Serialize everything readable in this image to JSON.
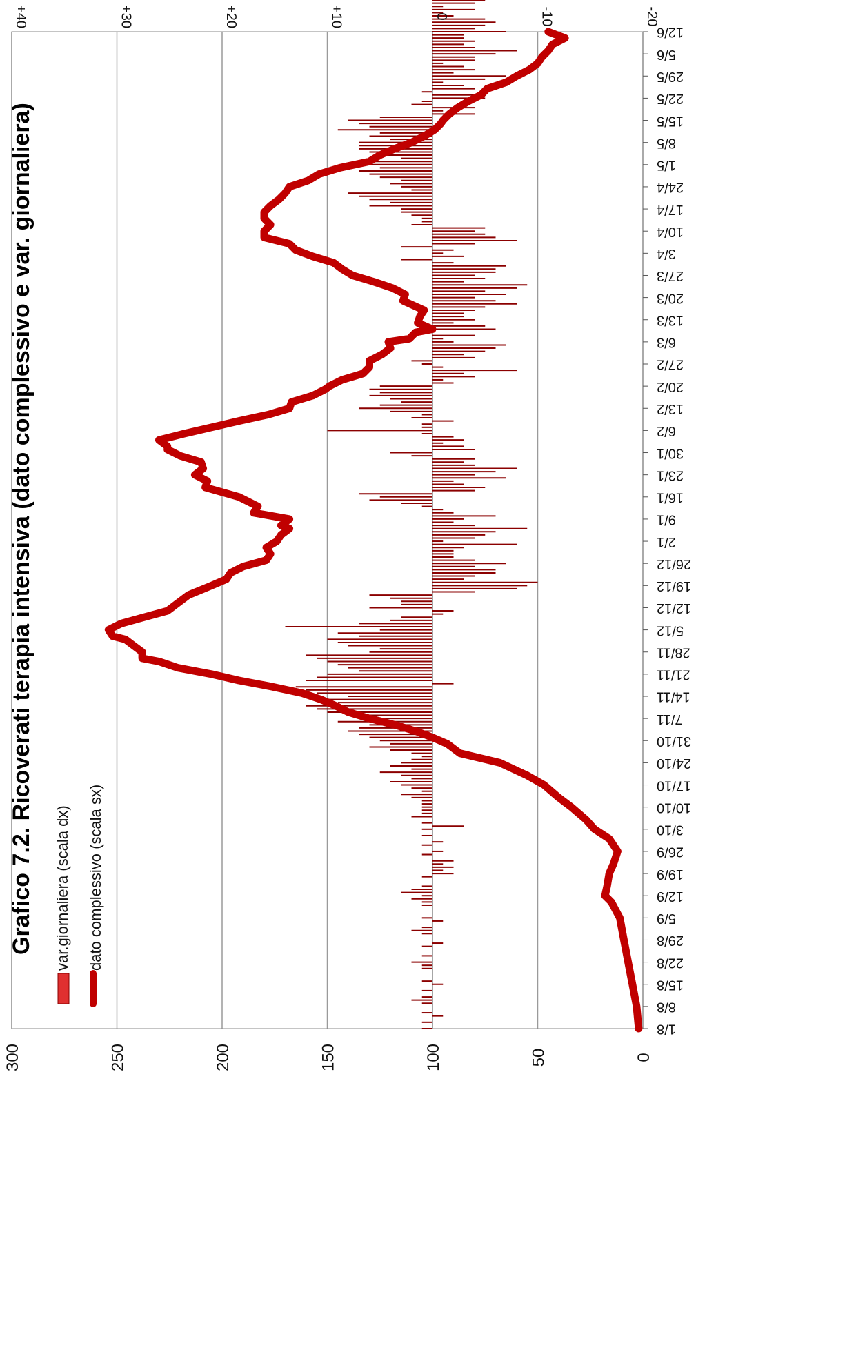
{
  "chart_data": {
    "type": "bar+line",
    "title": "Grafico 7.2. Ricoverati terapia intensiva (dato complessivo e var. giornaliera)",
    "orientation": "rotated-90-clockwise",
    "x_axis": {
      "tick_labels": [
        "1/8",
        "8/8",
        "15/8",
        "22/8",
        "29/8",
        "5/9",
        "12/9",
        "19/9",
        "26/9",
        "3/10",
        "10/10",
        "17/10",
        "24/10",
        "31/10",
        "7/11",
        "14/11",
        "21/11",
        "28/11",
        "5/12",
        "12/12",
        "19/12",
        "26/12",
        "2/1",
        "9/1",
        "16/1",
        "23/1",
        "30/1",
        "6/2",
        "13/2",
        "20/2",
        "27/2",
        "6/3",
        "13/3",
        "20/3",
        "27/3",
        "3/4",
        "10/4",
        "17/4",
        "24/4",
        "1/5",
        "8/5",
        "15/5",
        "22/5",
        "29/5",
        "5/6",
        "12/6"
      ],
      "tick_start_day": 0,
      "tick_step_days": 7,
      "last_day": 315
    },
    "left_axis": {
      "label": "scala sx",
      "range": [
        0,
        300
      ],
      "ticks": [
        "0",
        "50",
        "100",
        "150",
        "200",
        "250",
        "300"
      ]
    },
    "right_axis": {
      "label": "scala dx",
      "range": [
        -20,
        40
      ],
      "ticks": [
        "-20",
        "-10",
        "0",
        "+10",
        "+20",
        "+30",
        "+40"
      ]
    },
    "grid": true,
    "legend": {
      "position": "top-left",
      "items": [
        {
          "name": "var.giornaliera (scala dx)",
          "symbol": "bar"
        },
        {
          "name": "dato complessivo (scala sx)",
          "symbol": "line"
        }
      ]
    },
    "colors": {
      "line": "#c00000",
      "bar": "#8b0000",
      "legend_bar": "#e03030",
      "grid": "#9a9a9a"
    },
    "series": [
      {
        "name": "dato complessivo (scala sx)",
        "axis": "left",
        "type": "line",
        "points": [
          [
            0,
            2
          ],
          [
            7,
            3
          ],
          [
            14,
            5
          ],
          [
            21,
            7
          ],
          [
            28,
            9
          ],
          [
            35,
            11
          ],
          [
            40,
            15
          ],
          [
            42,
            18
          ],
          [
            45,
            17
          ],
          [
            49,
            16
          ],
          [
            52,
            14
          ],
          [
            56,
            12
          ],
          [
            60,
            16
          ],
          [
            63,
            23
          ],
          [
            66,
            27
          ],
          [
            70,
            34
          ],
          [
            73,
            40
          ],
          [
            77,
            47
          ],
          [
            80,
            55
          ],
          [
            84,
            68
          ],
          [
            87,
            87
          ],
          [
            90,
            93
          ],
          [
            92,
            100
          ],
          [
            94,
            108
          ],
          [
            96,
            118
          ],
          [
            98,
            130
          ],
          [
            100,
            140
          ],
          [
            102,
            146
          ],
          [
            104,
            153
          ],
          [
            106,
            162
          ],
          [
            108,
            176
          ],
          [
            110,
            192
          ],
          [
            112,
            205
          ],
          [
            114,
            221
          ],
          [
            116,
            230
          ],
          [
            117,
            238
          ],
          [
            119,
            238
          ],
          [
            121,
            242
          ],
          [
            123,
            246
          ],
          [
            124,
            252
          ],
          [
            126,
            254
          ],
          [
            128,
            248
          ],
          [
            130,
            237
          ],
          [
            132,
            226
          ],
          [
            134,
            222
          ],
          [
            137,
            216
          ],
          [
            140,
            205
          ],
          [
            142,
            198
          ],
          [
            144,
            196
          ],
          [
            146,
            190
          ],
          [
            148,
            179
          ],
          [
            150,
            177
          ],
          [
            152,
            179
          ],
          [
            154,
            174
          ],
          [
            156,
            172
          ],
          [
            158,
            168
          ],
          [
            159,
            172
          ],
          [
            161,
            168
          ],
          [
            163,
            185
          ],
          [
            165,
            183
          ],
          [
            168,
            192
          ],
          [
            171,
            208
          ],
          [
            173,
            207
          ],
          [
            175,
            213
          ],
          [
            177,
            209
          ],
          [
            179,
            210
          ],
          [
            181,
            220
          ],
          [
            183,
            226
          ],
          [
            184,
            226
          ],
          [
            186,
            230
          ],
          [
            188,
            218
          ],
          [
            190,
            205
          ],
          [
            192,
            192
          ],
          [
            194,
            178
          ],
          [
            196,
            168
          ],
          [
            198,
            167
          ],
          [
            200,
            157
          ],
          [
            202,
            151
          ],
          [
            203,
            149
          ],
          [
            205,
            143
          ],
          [
            207,
            133
          ],
          [
            209,
            130
          ],
          [
            211,
            130
          ],
          [
            213,
            124
          ],
          [
            215,
            120
          ],
          [
            217,
            121
          ],
          [
            218,
            111
          ],
          [
            220,
            108
          ],
          [
            221,
            100
          ],
          [
            223,
            107
          ],
          [
            225,
            106
          ],
          [
            227,
            104
          ],
          [
            230,
            114
          ],
          [
            232,
            113
          ],
          [
            234,
            119
          ],
          [
            236,
            128
          ],
          [
            238,
            138
          ],
          [
            240,
            143
          ],
          [
            242,
            147
          ],
          [
            244,
            157
          ],
          [
            246,
            165
          ],
          [
            248,
            168
          ],
          [
            250,
            180
          ],
          [
            252,
            180
          ],
          [
            254,
            177
          ],
          [
            256,
            180
          ],
          [
            258,
            180
          ],
          [
            260,
            177
          ],
          [
            262,
            173
          ],
          [
            264,
            170
          ],
          [
            266,
            168
          ],
          [
            268,
            159
          ],
          [
            270,
            154
          ],
          [
            272,
            144
          ],
          [
            274,
            130
          ],
          [
            276,
            125
          ],
          [
            278,
            118
          ],
          [
            280,
            110
          ],
          [
            282,
            104
          ],
          [
            284,
            99
          ],
          [
            286,
            96
          ],
          [
            287,
            95
          ],
          [
            289,
            92
          ],
          [
            291,
            88
          ],
          [
            293,
            83
          ],
          [
            295,
            77
          ],
          [
            297,
            74
          ],
          [
            299,
            65
          ],
          [
            301,
            60
          ],
          [
            303,
            54
          ],
          [
            305,
            50
          ],
          [
            307,
            48
          ],
          [
            309,
            45
          ],
          [
            311,
            43
          ],
          [
            313,
            37
          ],
          [
            315,
            45
          ]
        ]
      },
      {
        "name": "var.giornaliera (scala dx)",
        "axis": "right",
        "type": "bar",
        "values": [
          1,
          0,
          1,
          0,
          -1,
          1,
          0,
          0,
          1,
          2,
          1,
          0,
          1,
          0,
          -1,
          1,
          0,
          0,
          0,
          1,
          1,
          2,
          0,
          1,
          0,
          0,
          1,
          -1,
          0,
          0,
          1,
          2,
          1,
          0,
          -1,
          1,
          0,
          0,
          0,
          1,
          1,
          2,
          1,
          3,
          2,
          1,
          0,
          0,
          1,
          -2,
          -1,
          -2,
          -1,
          -2,
          0,
          1,
          -1,
          0,
          1,
          -1,
          0,
          1,
          0,
          1,
          -3,
          1,
          0,
          2,
          1,
          1,
          1,
          1,
          1,
          2,
          3,
          1,
          2,
          3,
          4,
          2,
          3,
          5,
          2,
          4,
          3,
          2,
          1,
          2,
          4,
          6,
          4,
          5,
          6,
          7,
          8,
          7,
          6,
          9,
          5,
          7,
          10,
          11,
          12,
          9,
          10,
          8,
          11,
          12,
          13,
          -2,
          12,
          11,
          10,
          7,
          8,
          9,
          10,
          11,
          12,
          6,
          5,
          8,
          9,
          10,
          7,
          9,
          5,
          14,
          7,
          4,
          3,
          -1,
          -2,
          6,
          3,
          3,
          4,
          6,
          -4,
          -8,
          -9,
          -10,
          -3,
          -4,
          -6,
          -6,
          -4,
          -7,
          -4,
          -2,
          -2,
          -2,
          -3,
          -8,
          -1,
          -4,
          -5,
          -6,
          -9,
          -4,
          -2,
          -3,
          -6,
          -2,
          -1,
          1,
          3,
          6,
          5,
          7,
          -4,
          -5,
          -3,
          -2,
          -7,
          -4,
          -6,
          -8,
          -4,
          -3,
          -4,
          2,
          4,
          -4,
          -3,
          -1,
          -3,
          -2,
          1,
          10,
          1,
          1,
          -2,
          2,
          1,
          4,
          7,
          5,
          3,
          4,
          6,
          5,
          6,
          5,
          -2,
          -1,
          -4,
          -3,
          -8,
          -1,
          1,
          2,
          -4,
          -3,
          -5,
          -6,
          -7,
          -2,
          -1,
          -4,
          2,
          -6,
          -5,
          -2,
          -4,
          -3,
          -3,
          -4,
          -5,
          -8,
          -6,
          -4,
          -7,
          -5,
          -8,
          -9,
          -3,
          -5,
          -4,
          -6,
          -6,
          -7,
          -2,
          3,
          -3,
          -1,
          -2,
          3,
          -4,
          -8,
          -6,
          -5,
          -4,
          -5,
          2,
          1,
          1,
          2,
          3,
          3,
          6,
          4,
          6,
          7,
          8,
          2,
          3,
          4,
          3,
          5,
          6,
          7,
          5,
          7,
          6,
          3,
          5,
          6,
          7,
          7,
          7,
          4,
          6,
          5,
          9,
          6,
          7,
          8,
          5,
          -4,
          -1,
          -4,
          2,
          1,
          -5,
          -4,
          1,
          -4,
          -3,
          -1,
          -5,
          -7,
          -2,
          -4,
          -3,
          -1,
          -4,
          -4,
          -6,
          -8,
          -4,
          -3,
          -4,
          -3,
          -3,
          -7,
          -4,
          -5,
          -6,
          -5,
          -2,
          -1,
          -4,
          -1,
          -4,
          -5,
          -6,
          -3,
          -1,
          -2,
          -1,
          -3,
          -4,
          -4,
          -8,
          -5,
          -2,
          -6,
          -7,
          -4,
          -6,
          -4,
          -3,
          -5,
          -8,
          -8,
          -4,
          -8,
          -8,
          -7,
          -9,
          -6,
          -6,
          -4,
          -6,
          -10,
          -11,
          -3,
          -2,
          -1,
          -1,
          -3,
          5
        ]
      }
    ]
  }
}
